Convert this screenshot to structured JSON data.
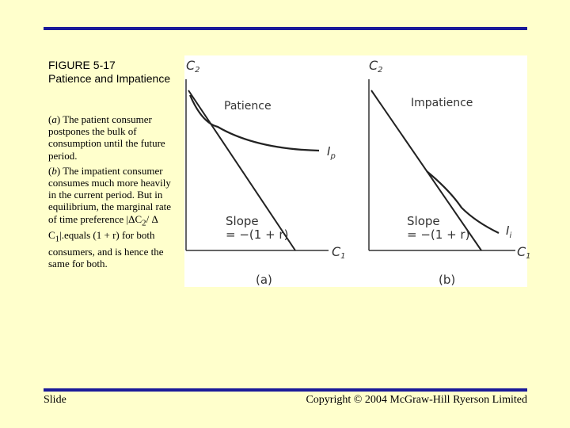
{
  "figure": {
    "number": "FIGURE 5-17",
    "title": "Patience and Impatience"
  },
  "caption": {
    "part_a_label": "a",
    "part_a_text": " The patient consumer postpones the bulk of consumption until the future period.",
    "part_b_label": "b",
    "part_b_text": " The impatient consumer consumes much more heavily in the current period. But in equilibrium, the marginal rate of time preference |ΔC",
    "part_b_sub1": "2",
    "part_b_mid": "/ Δ C",
    "part_b_sub2": "1",
    "part_b_end": "|.equals (1 + r) for both consumers, and is hence the same for both."
  },
  "panels": [
    {
      "label": "Patience",
      "y_axis": "C",
      "y_axis_sub": "2",
      "x_axis": "C",
      "x_axis_sub": "1",
      "curve_label": "I",
      "curve_label_sub": "p",
      "slope_label": "Slope",
      "slope_value": "= −(1 + r)",
      "panel_tag": "(a)"
    },
    {
      "label": "Impatience",
      "y_axis": "C",
      "y_axis_sub": "2",
      "x_axis": "C",
      "x_axis_sub": "1",
      "curve_label": "I",
      "curve_label_sub": "i",
      "slope_label": "Slope",
      "slope_value": "= −(1 + r)",
      "panel_tag": "(b)"
    }
  ],
  "footer": {
    "left": "Slide",
    "right": "Copyright © 2004 McGraw-Hill Ryerson Limited"
  },
  "colors": {
    "background": "#ffffcc",
    "rule": "#1a1a99"
  }
}
